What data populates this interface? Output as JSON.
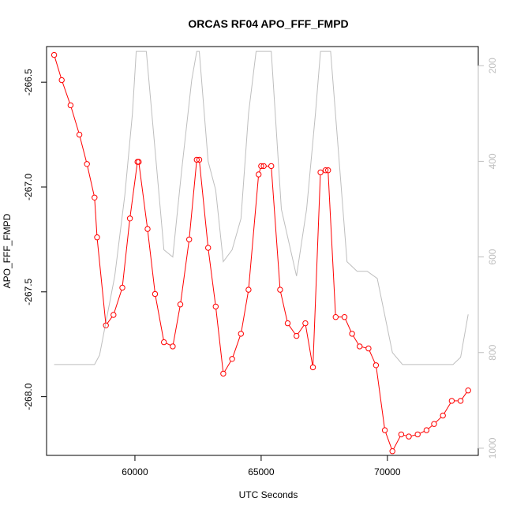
{
  "chart_data": {
    "type": "line",
    "title": "ORCAS RF04 APO_FFF_FMPD",
    "xlabel": "UTC Seconds",
    "ylabel": "APO_FFF_FMPD",
    "xlim": [
      56500,
      73600
    ],
    "ylim": [
      -268.28,
      -266.33
    ],
    "y2lim": [
      1015,
      160
    ],
    "x_ticks": [
      60000,
      65000,
      70000
    ],
    "x_tick_labels": [
      "60000",
      "65000",
      "70000"
    ],
    "y_ticks": [
      -268.0,
      -267.5,
      -267.0,
      -266.5
    ],
    "y_tick_labels": [
      "-268.0",
      "-267.5",
      "-267.0",
      "-266.5"
    ],
    "y2_ticks": [
      200,
      400,
      600,
      800,
      1000
    ],
    "y2_tick_labels": [
      "200",
      "400",
      "600",
      "800",
      "1000"
    ],
    "grid": false,
    "series": [
      {
        "axis": "left",
        "color": "#ff0000",
        "style": "line+open-circles",
        "x": [
          56800,
          57100,
          57450,
          57800,
          58100,
          58400,
          58500,
          58850,
          59150,
          59500,
          59800,
          60100,
          60150,
          60500,
          60800,
          61150,
          61500,
          61800,
          62150,
          62450,
          62550,
          62900,
          63200,
          63500,
          63850,
          64200,
          64500,
          64900,
          65000,
          65100,
          65400,
          65750,
          66050,
          66400,
          66750,
          67050,
          67350,
          67550,
          67650,
          67950,
          68300,
          68600,
          68900,
          69250,
          69550,
          69900,
          70200,
          70550,
          70850,
          71200,
          71550,
          71850,
          72200,
          72550,
          72900,
          73200
        ],
        "y": [
          -266.37,
          -266.49,
          -266.61,
          -266.75,
          -266.89,
          -267.05,
          -267.24,
          -267.66,
          -267.61,
          -267.48,
          -267.15,
          -266.88,
          -266.88,
          -267.2,
          -267.51,
          -267.74,
          -267.76,
          -267.56,
          -267.25,
          -266.87,
          -266.87,
          -267.29,
          -267.57,
          -267.89,
          -267.82,
          -267.7,
          -267.49,
          -266.94,
          -266.9,
          -266.9,
          -266.9,
          -267.49,
          -267.65,
          -267.71,
          -267.65,
          -267.86,
          -266.93,
          -266.92,
          -266.92,
          -267.62,
          -267.62,
          -267.7,
          -267.76,
          -267.77,
          -267.85,
          -268.16,
          -268.26,
          -268.18,
          -268.19,
          -268.18,
          -268.16,
          -268.13,
          -268.09,
          -268.02,
          -268.02,
          -267.97
        ]
      },
      {
        "axis": "right",
        "color": "#bebebe",
        "style": "line",
        "x": [
          56800,
          58400,
          58600,
          58800,
          59200,
          59600,
          59900,
          60050,
          60450,
          61150,
          61500,
          61850,
          62250,
          62450,
          62550,
          62900,
          63200,
          63500,
          63850,
          64200,
          64500,
          64800,
          65100,
          65400,
          65800,
          66400,
          66800,
          67150,
          67350,
          67750,
          68400,
          68800,
          69200,
          69600,
          70200,
          70600,
          71000,
          72600,
          72900,
          73200
        ],
        "y": [
          825,
          825,
          805,
          750,
          640,
          470,
          300,
          170,
          170,
          585,
          600,
          420,
          230,
          170,
          170,
          400,
          460,
          610,
          585,
          520,
          300,
          170,
          170,
          170,
          500,
          640,
          500,
          300,
          170,
          170,
          610,
          630,
          630,
          645,
          800,
          825,
          825,
          825,
          810,
          720
        ]
      }
    ]
  }
}
